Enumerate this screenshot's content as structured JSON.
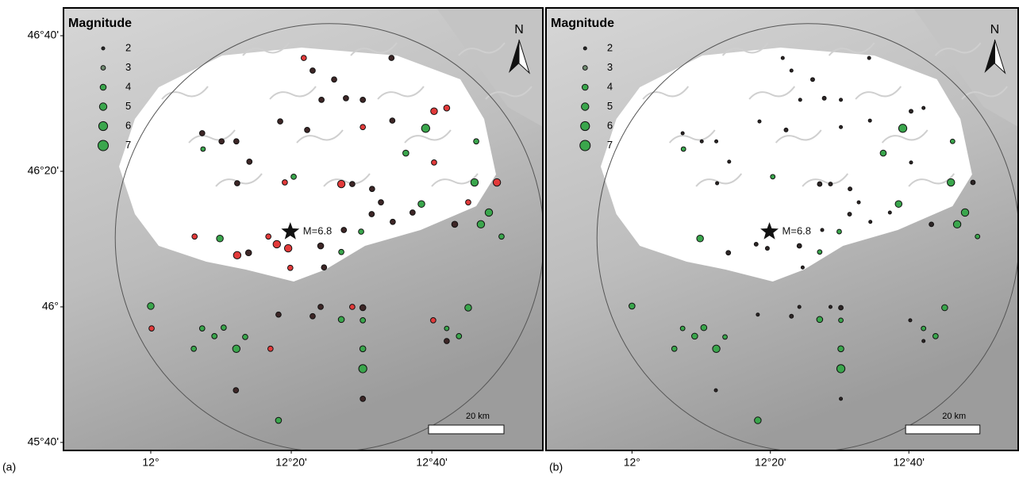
{
  "chart_data": {
    "type": "map",
    "xlim": [
      11.793,
      12.93
    ],
    "ylim": [
      45.647,
      46.735
    ],
    "xticks": [
      {
        "value": 12,
        "label": "12°"
      },
      {
        "value": 12.3333,
        "label": "12°20'"
      },
      {
        "value": 12.6667,
        "label": "12°40'"
      }
    ],
    "yticks": [
      {
        "value": 45.6667,
        "label": "45°40'"
      },
      {
        "value": 46,
        "label": "46°"
      },
      {
        "value": 46.3333,
        "label": "46°20'"
      },
      {
        "value": 46.6667,
        "label": "46°40'"
      }
    ],
    "legend_title": "Magnitude",
    "legend_magnitudes": [
      2,
      3,
      4,
      5,
      6,
      7
    ],
    "legend_colors": [
      "#2b2b2b",
      "#6f8a70",
      "#3aa64c",
      "#3aa64c",
      "#3aa64c",
      "#3aa64c"
    ],
    "north_label": "N",
    "scale_label": "20 km",
    "mainshock": {
      "lon": 12.331,
      "lat": 46.185,
      "label": "M=6.8"
    },
    "panels": [
      {
        "label": "(a)",
        "series": [
          {
            "color": "#3d2626",
            "points": [
              [
                12.435,
                46.559,
                3.5
              ],
              [
                12.384,
                46.581,
                3.5
              ],
              [
                12.463,
                46.513,
                3.5
              ],
              [
                12.503,
                46.509,
                3.5
              ],
              [
                12.405,
                46.509,
                3.5
              ],
              [
                12.571,
                46.612,
                3.5
              ],
              [
                12.122,
                46.427,
                3.5
              ],
              [
                12.168,
                46.407,
                3.5
              ],
              [
                12.203,
                46.407,
                3.5
              ],
              [
                12.234,
                46.357,
                3.5
              ],
              [
                12.205,
                46.304,
                3.5
              ],
              [
                12.307,
                46.456,
                3.5
              ],
              [
                12.371,
                46.435,
                3.5
              ],
              [
                12.478,
                46.302,
                3.5
              ],
              [
                12.525,
                46.29,
                3.5
              ],
              [
                12.573,
                46.458,
                3.5
              ],
              [
                12.721,
                46.203,
                4
              ],
              [
                12.232,
                46.133,
                4
              ],
              [
                12.403,
                46.15,
                4
              ],
              [
                12.411,
                46.097,
                3.5
              ],
              [
                12.524,
                46.228,
                3.5
              ],
              [
                12.574,
                46.209,
                3.5
              ],
              [
                12.202,
                45.795,
                3.5
              ],
              [
                12.303,
                45.981,
                3.5
              ],
              [
                12.384,
                45.977,
                3.5
              ],
              [
                12.403,
                46,
                3.5
              ],
              [
                12.503,
                45.998,
                4
              ],
              [
                12.503,
                45.774,
                3.5
              ],
              [
                12.702,
                45.916,
                3.5
              ],
              [
                12.546,
                46.257,
                3.5
              ],
              [
                12.621,
                46.232,
                3.5
              ],
              [
                12.458,
                46.189,
                3.5
              ]
            ]
          },
          {
            "color": "#e23a3a",
            "points": [
              [
                12.363,
                46.612,
                3.5
              ],
              [
                12.318,
                46.306,
                3.5
              ],
              [
                12.452,
                46.302,
                5
              ],
              [
                12.672,
                46.481,
                4.5
              ],
              [
                12.702,
                46.489,
                4
              ],
              [
                12.821,
                46.306,
                5
              ],
              [
                12.104,
                46.173,
                3.5
              ],
              [
                12.205,
                46.127,
                5
              ],
              [
                12.279,
                46.173,
                3.5
              ],
              [
                12.299,
                46.154,
                5
              ],
              [
                12.326,
                46.144,
                5
              ],
              [
                12.002,
                45.947,
                3.5
              ],
              [
                12.284,
                45.897,
                3.5
              ],
              [
                12.478,
                46,
                3.5
              ],
              [
                12.67,
                45.967,
                3.5
              ],
              [
                12.331,
                46.096,
                3.5
              ],
              [
                12.503,
                46.442,
                3.5
              ],
              [
                12.672,
                46.355,
                3.5
              ],
              [
                12.753,
                46.257,
                3.5
              ]
            ]
          },
          {
            "color": "#3aa64c",
            "points": [
              [
                12.124,
                46.388,
                3
              ],
              [
                12.339,
                46.32,
                3.5
              ],
              [
                12.652,
                46.439,
                5.5
              ],
              [
                12.605,
                46.378,
                4
              ],
              [
                12.772,
                46.407,
                3.5
              ],
              [
                12.768,
                46.306,
                5
              ],
              [
                12.802,
                46.232,
                5
              ],
              [
                12.783,
                46.203,
                5
              ],
              [
                12.832,
                46.173,
                3.5
              ],
              [
                12.164,
                46.168,
                4.5
              ],
              [
                12.499,
                46.185,
                3.5
              ],
              [
                12.642,
                46.253,
                4.5
              ],
              [
                12,
                46.002,
                4.5
              ],
              [
                12.102,
                45.897,
                3.5
              ],
              [
                12.122,
                45.947,
                3.5
              ],
              [
                12.151,
                45.928,
                3.5
              ],
              [
                12.173,
                45.949,
                3.5
              ],
              [
                12.203,
                45.897,
                5
              ],
              [
                12.224,
                45.926,
                3.5
              ],
              [
                12.303,
                45.721,
                4
              ],
              [
                12.452,
                45.969,
                4
              ],
              [
                12.503,
                45.967,
                3.5
              ],
              [
                12.503,
                45.897,
                4
              ],
              [
                12.503,
                45.848,
                5.5
              ],
              [
                12.702,
                45.947,
                3
              ],
              [
                12.731,
                45.928,
                3.5
              ],
              [
                12.753,
                45.998,
                4.5
              ],
              [
                12.452,
                46.135,
                3.5
              ]
            ]
          }
        ]
      },
      {
        "label": "(b)",
        "series": [
          {
            "color": "#2e2626",
            "points": [
              [
                12.435,
                46.559,
                2.5
              ],
              [
                12.384,
                46.581,
                2
              ],
              [
                12.463,
                46.513,
                2.5
              ],
              [
                12.503,
                46.509,
                2
              ],
              [
                12.405,
                46.509,
                2
              ],
              [
                12.571,
                46.612,
                2
              ],
              [
                12.122,
                46.427,
                2
              ],
              [
                12.168,
                46.407,
                2
              ],
              [
                12.203,
                46.407,
                2
              ],
              [
                12.234,
                46.357,
                2
              ],
              [
                12.205,
                46.304,
                2
              ],
              [
                12.307,
                46.456,
                2
              ],
              [
                12.371,
                46.435,
                2.5
              ],
              [
                12.478,
                46.302,
                2.5
              ],
              [
                12.525,
                46.29,
                2.5
              ],
              [
                12.573,
                46.458,
                2
              ],
              [
                12.721,
                46.203,
                3
              ],
              [
                12.232,
                46.133,
                3
              ],
              [
                12.403,
                46.15,
                3
              ],
              [
                12.411,
                46.097,
                2
              ],
              [
                12.524,
                46.228,
                2.5
              ],
              [
                12.574,
                46.209,
                2
              ],
              [
                12.202,
                45.795,
                2
              ],
              [
                12.303,
                45.981,
                2
              ],
              [
                12.384,
                45.977,
                2.5
              ],
              [
                12.403,
                46,
                2
              ],
              [
                12.503,
                45.998,
                3
              ],
              [
                12.503,
                45.774,
                2
              ],
              [
                12.702,
                45.916,
                2
              ],
              [
                12.546,
                46.257,
                2
              ],
              [
                12.621,
                46.232,
                2
              ],
              [
                12.458,
                46.189,
                2
              ],
              [
                12.363,
                46.612,
                2
              ],
              [
                12.452,
                46.302,
                3
              ],
              [
                12.672,
                46.481,
                2.5
              ],
              [
                12.702,
                46.489,
                2
              ],
              [
                12.821,
                46.306,
                3
              ],
              [
                12.299,
                46.154,
                2.5
              ],
              [
                12.326,
                46.144,
                2.5
              ],
              [
                12.478,
                46,
                2
              ],
              [
                12.67,
                45.967,
                2
              ],
              [
                12.503,
                46.442,
                2
              ],
              [
                12.672,
                46.355,
                2
              ]
            ]
          },
          {
            "color": "#3aa64c",
            "points": [
              [
                12.124,
                46.388,
                3
              ],
              [
                12.339,
                46.32,
                3
              ],
              [
                12.652,
                46.439,
                5.5
              ],
              [
                12.605,
                46.378,
                4
              ],
              [
                12.772,
                46.407,
                3
              ],
              [
                12.768,
                46.306,
                5
              ],
              [
                12.802,
                46.232,
                5
              ],
              [
                12.783,
                46.203,
                5
              ],
              [
                12.832,
                46.173,
                3
              ],
              [
                12.164,
                46.168,
                4.5
              ],
              [
                12.499,
                46.185,
                3
              ],
              [
                12.642,
                46.253,
                4.5
              ],
              [
                12,
                46.002,
                4
              ],
              [
                12.102,
                45.897,
                3.5
              ],
              [
                12.122,
                45.947,
                3
              ],
              [
                12.151,
                45.928,
                4
              ],
              [
                12.173,
                45.949,
                4
              ],
              [
                12.203,
                45.897,
                5
              ],
              [
                12.224,
                45.926,
                3
              ],
              [
                12.303,
                45.721,
                4.5
              ],
              [
                12.452,
                45.969,
                4
              ],
              [
                12.503,
                45.967,
                3
              ],
              [
                12.503,
                45.897,
                4
              ],
              [
                12.503,
                45.848,
                5.5
              ],
              [
                12.702,
                45.947,
                3
              ],
              [
                12.731,
                45.928,
                3.5
              ],
              [
                12.753,
                45.998,
                4
              ],
              [
                12.452,
                46.135,
                3
              ]
            ]
          }
        ]
      }
    ]
  }
}
